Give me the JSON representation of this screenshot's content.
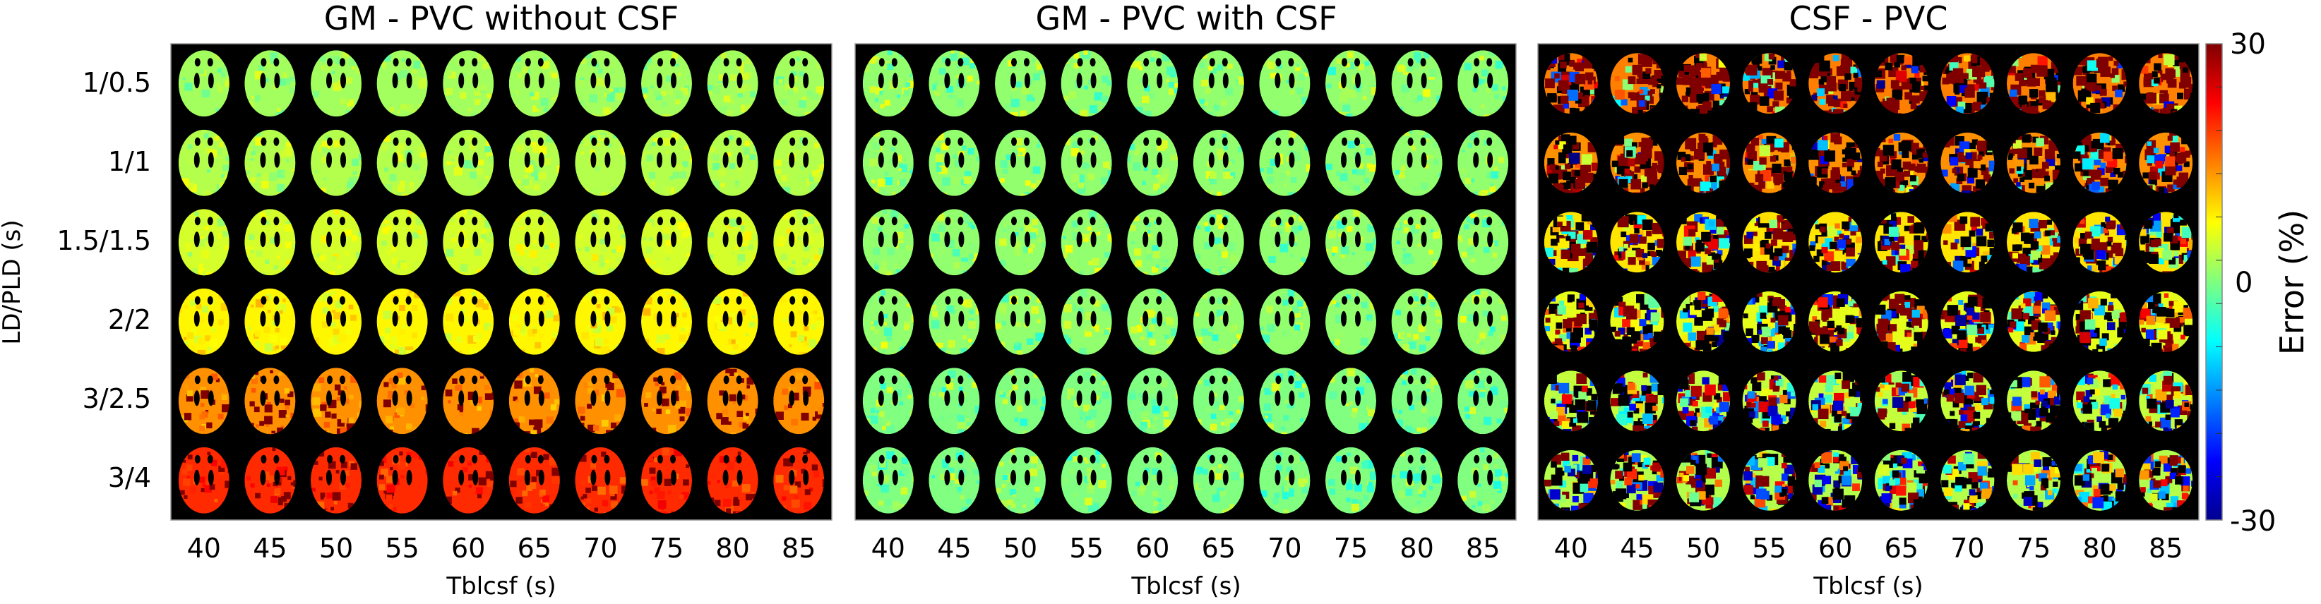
{
  "chart_data": {
    "type": "heatmap",
    "colormap": "jet",
    "colorbar": {
      "label": "Error (%)",
      "min": -30,
      "max": 30,
      "ticks": [
        "30",
        "0",
        "-30"
      ]
    },
    "ylabel": "LD/PLD (s)",
    "row_labels": [
      "1/0.5",
      "1/1",
      "1.5/1.5",
      "2/2",
      "3/2.5",
      "3/4"
    ],
    "xlabel": "Tblcsf (s)",
    "col_labels": [
      "40",
      "45",
      "50",
      "55",
      "60",
      "65",
      "70",
      "75",
      "80",
      "85"
    ],
    "panels": [
      {
        "title": "GM - PVC without CSF",
        "approx_mean_error_by_row": [
          2,
          3,
          5,
          8,
          14,
          20
        ],
        "noise": 4
      },
      {
        "title": "GM - PVC with CSF",
        "approx_mean_error_by_row": [
          1,
          1,
          1,
          1,
          0,
          0
        ],
        "noise": 6
      },
      {
        "title": "CSF - PVC",
        "approx_mean_error_by_row": [
          30,
          28,
          18,
          12,
          8,
          6
        ],
        "noise": 30
      }
    ]
  }
}
